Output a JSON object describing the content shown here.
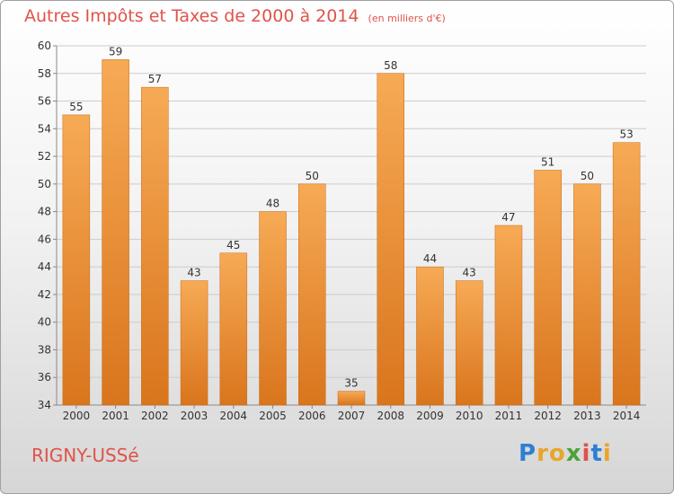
{
  "title": "Autres Impôts et Taxes de 2000 à 2014",
  "subtitle": "(en milliers d'€)",
  "commune": "RIGNY-USSé",
  "logo_text": "Proxiti",
  "colors": {
    "bar_light": "#f7aa55",
    "bar_dark": "#d9751d",
    "title": "#e0534a",
    "grid": "#cccccc"
  },
  "chart_data": {
    "type": "bar",
    "categories": [
      "2000",
      "2001",
      "2002",
      "2003",
      "2004",
      "2005",
      "2006",
      "2007",
      "2008",
      "2009",
      "2010",
      "2011",
      "2012",
      "2013",
      "2014"
    ],
    "values": [
      55,
      59,
      57,
      43,
      45,
      48,
      50,
      35,
      58,
      44,
      43,
      47,
      51,
      50,
      53
    ],
    "ylim": [
      34,
      60
    ],
    "yticks": [
      34,
      36,
      38,
      40,
      42,
      44,
      46,
      48,
      50,
      52,
      54,
      56,
      58,
      60
    ],
    "grid": true
  }
}
